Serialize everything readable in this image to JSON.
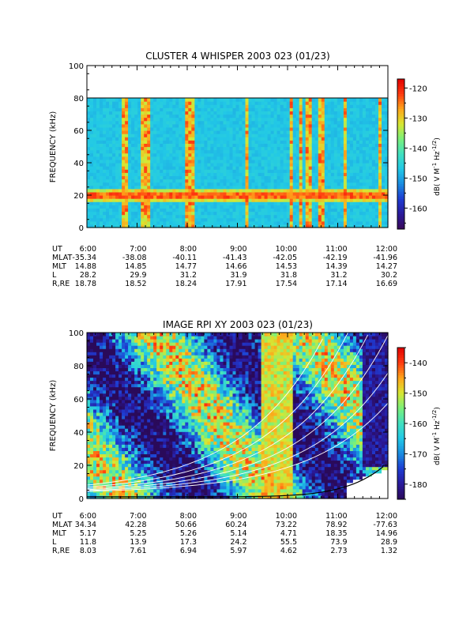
{
  "chart_data": [
    {
      "type": "heatmap",
      "title": "CLUSTER 4 WHISPER 2003 023 (01/23)",
      "ylabel": "FREQUENCY (kHz)",
      "colorbar_label": "dB( V M⁻¹ Hz⁻¹ᐟ² )",
      "colorbar_label_parts": [
        "dB( V M",
        "-1",
        " Hz",
        "-1/2",
        ")"
      ],
      "colorbar_ticks": [
        -120,
        -130,
        -140,
        -150,
        -160
      ],
      "colorbar_range": [
        -167,
        -117
      ],
      "colormap": [
        "#3a0a5a",
        "#2a1a9a",
        "#1e3cd2",
        "#1a8ce0",
        "#22c8e6",
        "#40e0c0",
        "#7af07a",
        "#d8e632",
        "#ffa41a",
        "#ff3a10",
        "#e00000"
      ],
      "xlim": [
        "6:00",
        "12:00"
      ],
      "x_ticks": [
        "6:00",
        "7:00",
        "8:00",
        "9:00",
        "10:00",
        "11:00",
        "12:00"
      ],
      "y_ticks": [
        0,
        20,
        40,
        60,
        80,
        100
      ],
      "ylim": [
        0,
        100
      ],
      "data_ylim": [
        0,
        80
      ],
      "background_level_db": -147,
      "features": {
        "band_20khz_db": -120,
        "band_20khz_center_khz": 20,
        "vertical_bursts_hours_ut": [
          "6:45",
          "7:05",
          "7:10",
          "7:15",
          "8:00",
          "8:05",
          "9:10",
          "10:05",
          "10:15",
          "10:25",
          "10:40",
          "11:10",
          "11:50"
        ]
      },
      "ephemeris": {
        "labels": [
          "UT",
          "MLAT",
          "MLT",
          "L",
          "R,RE"
        ],
        "rows": [
          [
            "6:00",
            "7:00",
            "8:00",
            "9:00",
            "10:00",
            "11:00",
            "12:00"
          ],
          [
            "-35.34",
            "-38.08",
            "-40.11",
            "-41.43",
            "-42.05",
            "-42.19",
            "-41.96"
          ],
          [
            "14.88",
            "14.85",
            "14.77",
            "14.66",
            "14.53",
            "14.39",
            "14.27"
          ],
          [
            "28.2",
            "29.9",
            "31.2",
            "31.9",
            "31.8",
            "31.2",
            "30.2"
          ],
          [
            "18.78",
            "18.52",
            "18.24",
            "17.91",
            "17.54",
            "17.14",
            "16.69"
          ]
        ]
      }
    },
    {
      "type": "heatmap",
      "title": "IMAGE RPI XY 2003 023 (01/23)",
      "ylabel": "FREQUENCY (kHz)",
      "colorbar_label": "dB( V M⁻¹ Hz⁻¹ᐟ² )",
      "colorbar_label_parts": [
        "dB( V M",
        "-1",
        " Hz",
        "-1/2",
        ")"
      ],
      "colorbar_ticks": [
        -140,
        -150,
        -160,
        -170,
        -180
      ],
      "colorbar_range": [
        -185,
        -135
      ],
      "colormap": [
        "#2a0a5a",
        "#2a1a9a",
        "#1e3cd2",
        "#1a8ce0",
        "#22c8e6",
        "#40e0c0",
        "#7af07a",
        "#d8e632",
        "#ffa41a",
        "#ff3a10",
        "#e00000"
      ],
      "xlim": [
        "6:00",
        "12:00"
      ],
      "x_ticks": [
        "6:00",
        "7:00",
        "8:00",
        "9:00",
        "10:00",
        "11:00",
        "12:00"
      ],
      "y_ticks": [
        0,
        20,
        40,
        60,
        80,
        100
      ],
      "ylim": [
        0,
        100
      ],
      "overlay_curves": "white plasma-frequency contours rising toward 12:00; black plasmapause curve near bottom",
      "ephemeris": {
        "labels": [
          "UT",
          "MLAT",
          "MLT",
          "L",
          "R,RE"
        ],
        "rows": [
          [
            "6:00",
            "7:00",
            "8:00",
            "9:00",
            "10:00",
            "11:00",
            "12:00"
          ],
          [
            "34.34",
            "42.28",
            "50.66",
            "60.24",
            "73.22",
            "78.92",
            "-77.63"
          ],
          [
            "5.17",
            "5.25",
            "5.26",
            "5.14",
            "4.71",
            "18.35",
            "14.96"
          ],
          [
            "11.8",
            "13.9",
            "17.3",
            "24.2",
            "55.5",
            "73.9",
            "28.9"
          ],
          [
            "8.03",
            "7.61",
            "6.94",
            "5.97",
            "4.62",
            "2.73",
            "1.32"
          ]
        ]
      }
    }
  ]
}
